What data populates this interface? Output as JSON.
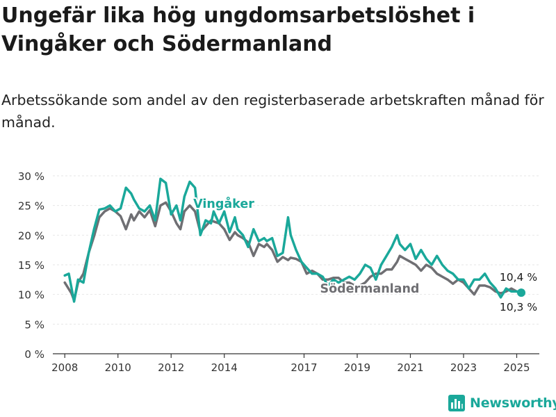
{
  "title": "Ungefär lika hög ungdomsarbetslöshet i Vingåker och Södermanland",
  "subtitle": "Arbetssökande som andel av den registerbaserade arbetskraften månad för månad.",
  "brand": "Newsworthy",
  "colors": {
    "vingaker": "#1aa89a",
    "sodermanland": "#6f6f73",
    "axis": "#333333",
    "text": "#1a1a1a"
  },
  "chart_data": {
    "type": "line",
    "y_tick_labels": [
      "0 %",
      "5 %",
      "10 %",
      "15 %",
      "20 %",
      "25 %",
      "30 %"
    ],
    "y_ticks": [
      0,
      5,
      10,
      15,
      20,
      25,
      30
    ],
    "ylim": [
      0,
      30
    ],
    "x_tick_labels": [
      "2008",
      "2010",
      "2012",
      "2014",
      "2017",
      "2019",
      "2021",
      "2023",
      "2025"
    ],
    "x_ticks": [
      2008.0,
      2010.0,
      2012.0,
      2014.0,
      2017.0,
      2019.0,
      2021.0,
      2023.0,
      2025.0
    ],
    "xlim": [
      2007.55,
      2025.85
    ],
    "series": [
      {
        "name": "Södermanland",
        "x": [
          2008.0,
          2008.25,
          2008.35,
          2008.5,
          2008.7,
          2008.9,
          2009.1,
          2009.3,
          2009.5,
          2009.7,
          2009.9,
          2010.1,
          2010.3,
          2010.5,
          2010.6,
          2010.8,
          2011.0,
          2011.2,
          2011.4,
          2011.6,
          2011.8,
          2012.0,
          2012.2,
          2012.35,
          2012.5,
          2012.7,
          2012.9,
          2013.1,
          2013.3,
          2013.5,
          2013.6,
          2013.8,
          2014.0,
          2014.2,
          2014.4,
          2014.5,
          2014.7,
          2014.9,
          2015.1,
          2015.3,
          2015.5,
          2015.6,
          2015.8,
          2016.0,
          2016.2,
          2016.4,
          2016.5,
          2016.7,
          2016.9,
          2017.1,
          2017.3,
          2017.5,
          2017.7,
          2017.9,
          2018.1,
          2018.3,
          2018.5,
          2018.7,
          2018.9,
          2019.1,
          2019.3,
          2019.5,
          2019.7,
          2019.9,
          2020.1,
          2020.3,
          2020.5,
          2020.6,
          2020.8,
          2021.0,
          2021.2,
          2021.4,
          2021.6,
          2021.8,
          2022.0,
          2022.2,
          2022.4,
          2022.6,
          2022.8,
          2023.0,
          2023.2,
          2023.4,
          2023.6,
          2023.8,
          2024.0,
          2024.2,
          2024.4,
          2024.6,
          2024.8,
          2025.0,
          2025.17
        ],
        "values": [
          12.0,
          10.2,
          9.0,
          12.0,
          13.5,
          17.0,
          19.8,
          23.0,
          24.0,
          24.5,
          24.0,
          23.2,
          21.0,
          23.5,
          22.5,
          24.0,
          23.0,
          24.2,
          21.5,
          25.0,
          25.5,
          24.0,
          22.0,
          21.0,
          24.0,
          25.0,
          24.0,
          20.5,
          21.5,
          22.5,
          22.3,
          22.0,
          21.0,
          19.2,
          20.5,
          20.0,
          19.5,
          18.8,
          16.5,
          18.5,
          18.0,
          18.5,
          17.5,
          15.5,
          16.3,
          15.8,
          16.2,
          16.0,
          15.5,
          13.5,
          14.0,
          13.5,
          12.5,
          12.5,
          12.8,
          12.8,
          12.0,
          12.0,
          11.5,
          11.5,
          12.0,
          13.0,
          13.5,
          13.5,
          14.2,
          14.2,
          15.5,
          16.5,
          16.0,
          15.5,
          15.0,
          14.0,
          15.0,
          14.5,
          13.5,
          13.0,
          12.5,
          11.8,
          12.5,
          12.0,
          11.0,
          10.0,
          11.5,
          11.5,
          11.2,
          10.5,
          10.2,
          10.5,
          11.0,
          10.5,
          10.3
        ],
        "end_label": "10,3 %"
      },
      {
        "name": "Vingåker",
        "x": [
          2008.0,
          2008.15,
          2008.35,
          2008.5,
          2008.7,
          2008.9,
          2009.1,
          2009.3,
          2009.5,
          2009.7,
          2009.9,
          2010.1,
          2010.3,
          2010.5,
          2010.6,
          2010.8,
          2011.0,
          2011.2,
          2011.4,
          2011.6,
          2011.8,
          2012.0,
          2012.2,
          2012.35,
          2012.5,
          2012.7,
          2012.9,
          2013.1,
          2013.3,
          2013.5,
          2013.6,
          2013.8,
          2014.0,
          2014.2,
          2014.4,
          2014.5,
          2014.7,
          2014.9,
          2015.1,
          2015.3,
          2015.5,
          2015.6,
          2015.8,
          2016.0,
          2016.2,
          2016.4,
          2016.5,
          2016.7,
          2016.9,
          2017.1,
          2017.3,
          2017.5,
          2017.7,
          2017.9,
          2018.1,
          2018.3,
          2018.5,
          2018.7,
          2018.9,
          2019.1,
          2019.3,
          2019.5,
          2019.7,
          2019.9,
          2020.1,
          2020.3,
          2020.5,
          2020.6,
          2020.8,
          2021.0,
          2021.2,
          2021.4,
          2021.6,
          2021.8,
          2022.0,
          2022.2,
          2022.4,
          2022.6,
          2022.8,
          2023.0,
          2023.2,
          2023.4,
          2023.6,
          2023.8,
          2024.0,
          2024.2,
          2024.4,
          2024.6,
          2024.8,
          2025.0,
          2025.17
        ],
        "values": [
          13.2,
          13.5,
          8.8,
          12.5,
          12.0,
          17.0,
          21.0,
          24.3,
          24.5,
          25.0,
          24.0,
          24.5,
          28.0,
          27.0,
          26.0,
          24.5,
          24.0,
          25.0,
          22.5,
          29.5,
          28.8,
          23.5,
          25.0,
          22.5,
          26.5,
          29.0,
          28.0,
          20.0,
          22.5,
          22.0,
          24.0,
          22.0,
          24.0,
          20.5,
          23.0,
          21.0,
          20.0,
          18.0,
          21.0,
          19.0,
          19.5,
          19.0,
          19.5,
          16.5,
          17.0,
          23.0,
          20.0,
          17.5,
          15.5,
          14.5,
          13.5,
          13.5,
          13.0,
          11.5,
          12.5,
          12.0,
          12.5,
          13.0,
          12.5,
          13.5,
          15.0,
          14.5,
          12.5,
          15.0,
          16.5,
          18.0,
          20.0,
          18.5,
          17.5,
          18.5,
          16.0,
          17.5,
          16.0,
          15.0,
          16.5,
          15.0,
          14.0,
          13.5,
          12.5,
          12.5,
          11.0,
          12.5,
          12.5,
          13.5,
          12.0,
          11.0,
          9.5,
          11.0,
          10.5,
          10.5,
          10.4
        ],
        "end_label": "10,4 %"
      }
    ]
  }
}
